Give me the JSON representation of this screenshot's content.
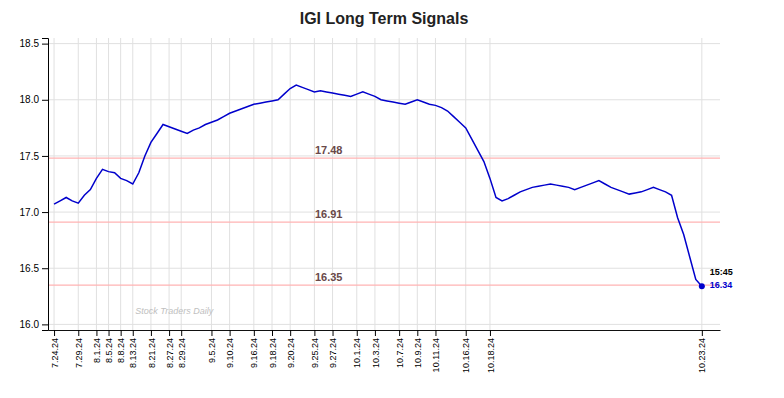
{
  "chart_data": {
    "type": "line",
    "title": "IGI Long Term Signals",
    "color": "#0000cc",
    "grid": true,
    "ylim": [
      15.95,
      18.55
    ],
    "yticks": [
      {
        "value": 16.0,
        "label": "16.0"
      },
      16.5,
      {
        "value": 17.0,
        "label": "17.0"
      },
      17.5,
      {
        "value": 18.0,
        "label": "18.0"
      },
      18.5
    ],
    "reference_lines": [
      {
        "value": 17.48,
        "label": "17.48",
        "color": "#ffb3b3"
      },
      {
        "value": 16.91,
        "label": "16.91",
        "color": "#ffb3b3"
      },
      {
        "value": 16.35,
        "label": "16.35",
        "color": "#ffb3b3"
      }
    ],
    "annotations": [
      {
        "text": "Stock Traders Daily",
        "color": "#c0c0c0"
      },
      {
        "text": "15:45",
        "color": "#000000"
      }
    ],
    "categories": [
      "7.24.24",
      null,
      null,
      null,
      "7.29.24",
      null,
      null,
      "8.1.24",
      null,
      "8.5.24",
      null,
      "8.8.24",
      null,
      "8.13.24",
      null,
      null,
      "8.21.24",
      null,
      null,
      "8.27.24",
      null,
      "8.29.24",
      null,
      null,
      null,
      null,
      "9.5.24",
      null,
      null,
      "9.10.24",
      null,
      null,
      null,
      "9.16.24",
      null,
      null,
      "9.18.24",
      null,
      null,
      "9.20.24",
      null,
      null,
      null,
      "9.25.24",
      null,
      null,
      "9.27.24",
      null,
      null,
      null,
      "10.1.24",
      null,
      null,
      "10.3.24",
      null,
      null,
      null,
      "10.7.24",
      null,
      null,
      "10.9.24",
      null,
      null,
      "10.11.24",
      null,
      null,
      null,
      null,
      "10.16.24",
      null,
      null,
      null,
      "10.18.24",
      null,
      null,
      null,
      null,
      null,
      null,
      null,
      null,
      null,
      null,
      null,
      null,
      null,
      null,
      null,
      null,
      null,
      null,
      null,
      null,
      null,
      null,
      null,
      null,
      null,
      null,
      null,
      null,
      null,
      null,
      null,
      null,
      null,
      null,
      "10.23.24"
    ],
    "values": [
      17.07,
      17.1,
      17.13,
      17.1,
      17.08,
      17.15,
      17.2,
      17.3,
      17.38,
      17.36,
      17.35,
      17.3,
      17.28,
      17.25,
      17.35,
      17.5,
      17.62,
      17.7,
      17.78,
      17.76,
      17.74,
      17.72,
      17.7,
      17.73,
      17.75,
      17.78,
      17.8,
      17.82,
      17.85,
      17.88,
      17.9,
      17.92,
      17.94,
      17.96,
      17.97,
      17.98,
      17.99,
      18.0,
      18.05,
      18.1,
      18.13,
      18.11,
      18.09,
      18.07,
      18.08,
      18.07,
      18.06,
      18.05,
      18.04,
      18.03,
      18.05,
      18.07,
      18.05,
      18.03,
      18.0,
      17.99,
      17.98,
      17.97,
      17.96,
      17.98,
      18.0,
      17.98,
      17.96,
      17.95,
      17.93,
      17.9,
      17.85,
      17.8,
      17.75,
      17.65,
      17.55,
      17.45,
      17.3,
      17.13,
      17.1,
      17.12,
      17.15,
      17.18,
      17.2,
      17.22,
      17.23,
      17.24,
      17.25,
      17.24,
      17.23,
      17.22,
      17.2,
      17.22,
      17.24,
      17.26,
      17.28,
      17.25,
      17.22,
      17.2,
      17.18,
      17.16,
      17.17,
      17.18,
      17.2,
      17.22,
      17.2,
      17.18,
      17.15,
      16.95,
      16.8,
      16.6,
      16.4,
      16.34
    ]
  }
}
